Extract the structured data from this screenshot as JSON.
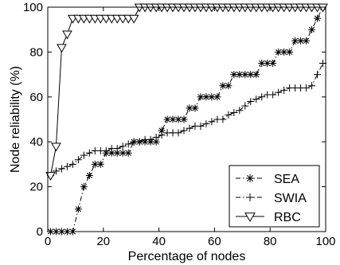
{
  "chart_data": {
    "type": "line",
    "title": "",
    "xlabel": "Percentage of nodes",
    "ylabel": "Node reliability (%)",
    "xlim": [
      0,
      100
    ],
    "ylim": [
      0,
      100
    ],
    "x_ticks": [
      "0",
      "20",
      "40",
      "60",
      "80",
      "100"
    ],
    "y_ticks": [
      "0",
      "20",
      "40",
      "60",
      "80",
      "100"
    ],
    "grid": false,
    "legend_position": "bottom-right",
    "series": [
      {
        "name": "SEA",
        "line_style": "dash-dot",
        "marker": "asterisk",
        "x": [
          1,
          3,
          5,
          7,
          9,
          11,
          13,
          15,
          17,
          19,
          21,
          23,
          25,
          27,
          29,
          31,
          33,
          35,
          37,
          39,
          41,
          43,
          45,
          47,
          49,
          51,
          53,
          55,
          57,
          59,
          61,
          63,
          65,
          67,
          69,
          71,
          73,
          75,
          77,
          79,
          81,
          83,
          85,
          87,
          89,
          91,
          93,
          95,
          97,
          99
        ],
        "y": [
          0,
          0,
          0,
          0,
          0,
          10,
          20,
          25,
          30,
          30,
          35,
          35,
          35,
          35,
          35,
          40,
          40,
          40,
          40,
          40,
          45,
          50,
          50,
          50,
          50,
          55,
          55,
          60,
          60,
          60,
          60,
          65,
          65,
          70,
          70,
          70,
          70,
          70,
          75,
          75,
          75,
          80,
          80,
          80,
          85,
          85,
          85,
          90,
          95,
          100
        ]
      },
      {
        "name": "SWIA",
        "line_style": "dash-dot",
        "marker": "plus",
        "x": [
          1,
          3,
          5,
          7,
          9,
          11,
          13,
          15,
          17,
          19,
          21,
          23,
          25,
          27,
          29,
          31,
          33,
          35,
          37,
          39,
          41,
          43,
          45,
          47,
          49,
          51,
          53,
          55,
          57,
          59,
          61,
          63,
          65,
          67,
          69,
          71,
          73,
          75,
          77,
          79,
          81,
          83,
          85,
          87,
          89,
          91,
          93,
          95,
          97,
          99
        ],
        "y": [
          25,
          27,
          28,
          29,
          30,
          32,
          34,
          35,
          36,
          36,
          36,
          37,
          37,
          38,
          39,
          40,
          40,
          41,
          41,
          42,
          43,
          44,
          44,
          44,
          45,
          46,
          47,
          47,
          48,
          49,
          50,
          50,
          52,
          53,
          54,
          56,
          58,
          59,
          60,
          61,
          61,
          62,
          63,
          64,
          64,
          64,
          64,
          65,
          70,
          75
        ]
      },
      {
        "name": "RBC",
        "line_style": "solid",
        "marker": "triangle-down",
        "x": [
          1,
          3,
          5,
          7,
          9,
          11,
          13,
          15,
          17,
          19,
          21,
          23,
          25,
          27,
          29,
          31,
          33,
          35,
          37,
          39,
          41,
          43,
          45,
          47,
          49,
          51,
          53,
          55,
          57,
          59,
          61,
          63,
          65,
          67,
          69,
          71,
          73,
          75,
          77,
          79,
          81,
          83,
          85,
          87,
          89,
          91,
          93,
          95,
          97,
          99
        ],
        "y": [
          25,
          38,
          82,
          88,
          95,
          95,
          95,
          95,
          95,
          95,
          95,
          95,
          95,
          95,
          95,
          95,
          100,
          100,
          100,
          100,
          100,
          100,
          100,
          100,
          100,
          100,
          100,
          100,
          100,
          100,
          100,
          100,
          100,
          100,
          100,
          100,
          100,
          100,
          100,
          100,
          100,
          100,
          100,
          100,
          100,
          100,
          100,
          100,
          100,
          100
        ]
      }
    ]
  }
}
